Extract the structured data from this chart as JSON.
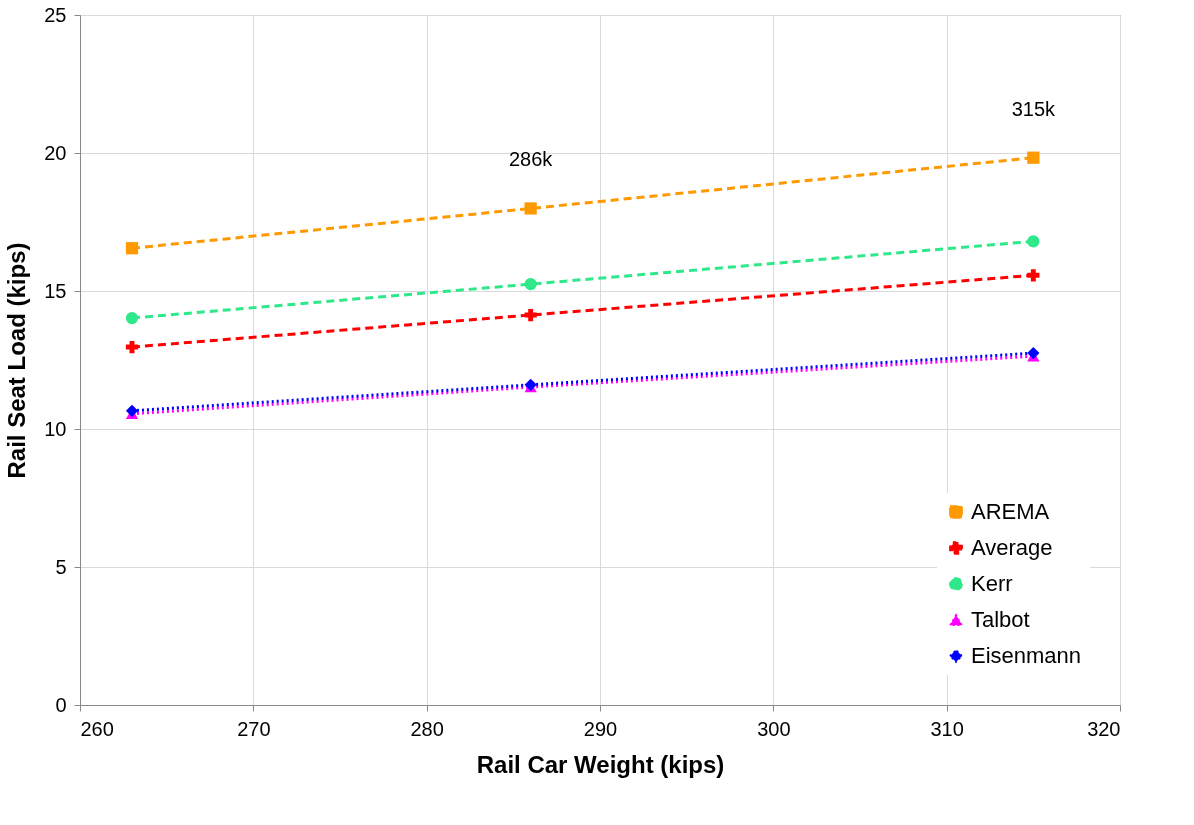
{
  "chart_data": {
    "type": "line",
    "xlabel": "Rail Car Weight (kips)",
    "ylabel": "Rail Seat Load (kips)",
    "x": [
      263,
      286,
      315
    ],
    "series": [
      {
        "name": "AREMA",
        "color": "#ff9900",
        "values": [
          16.55,
          17.99,
          19.83
        ],
        "marker": "square",
        "line_style": "dashed"
      },
      {
        "name": "Average",
        "color": "#ff0000",
        "values": [
          12.97,
          14.13,
          15.57
        ],
        "marker": "cross",
        "line_style": "dashed"
      },
      {
        "name": "Kerr",
        "color": "#2ee88a",
        "values": [
          14.02,
          15.25,
          16.8
        ],
        "marker": "circle",
        "line_style": "dashed"
      },
      {
        "name": "Talbot",
        "color": "#ff00ff",
        "values": [
          10.55,
          11.52,
          12.64
        ],
        "marker": "triangle",
        "line_style": "dotted"
      },
      {
        "name": "Eisenmann",
        "color": "#0000ff",
        "values": [
          10.66,
          11.6,
          12.75
        ],
        "marker": "diamond",
        "line_style": "dotted"
      }
    ],
    "annotations": [
      "286k",
      "315k"
    ],
    "xlim": [
      260,
      320
    ],
    "xticks": [
      260,
      270,
      280,
      290,
      300,
      310,
      320
    ],
    "ylim": [
      0,
      25
    ],
    "yticks": [
      0,
      5,
      10,
      15,
      20,
      25
    ],
    "grid": true,
    "legend": "bottom right"
  }
}
